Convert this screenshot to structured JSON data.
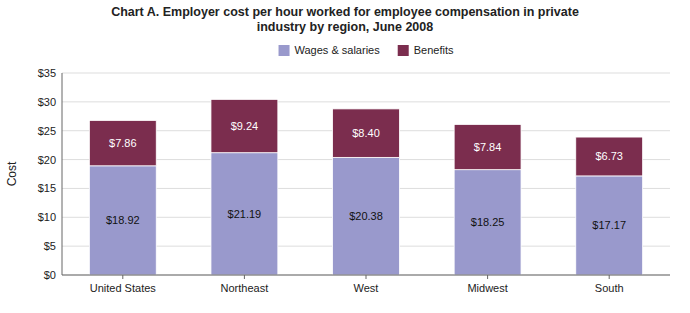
{
  "chart_data": {
    "type": "bar",
    "stacked": true,
    "title": "Chart A. Employer cost per hour worked for employee compensation in private\nindustry by region, June 2008",
    "ylabel": "Cost",
    "categories": [
      "United States",
      "Northeast",
      "West",
      "Midwest",
      "South"
    ],
    "series": [
      {
        "name": "Wages & salaries",
        "color": "#9999CC",
        "values": [
          18.92,
          21.19,
          20.38,
          18.25,
          17.17
        ],
        "value_labels": [
          "$18.92",
          "$21.19",
          "$20.38",
          "$18.25",
          "$17.17"
        ]
      },
      {
        "name": "Benefits",
        "color": "#7B2D4E",
        "values": [
          7.86,
          9.24,
          8.4,
          7.84,
          6.73
        ],
        "value_labels": [
          "$7.86",
          "$9.24",
          "$8.40",
          "$7.84",
          "$6.73"
        ]
      }
    ],
    "ylim": [
      0,
      35
    ],
    "yticks": [
      {
        "value": 0,
        "label": "$0"
      },
      {
        "value": 5,
        "label": "$5"
      },
      {
        "value": 10,
        "label": "$10"
      },
      {
        "value": 15,
        "label": "$15"
      },
      {
        "value": 20,
        "label": "$20"
      },
      {
        "value": 25,
        "label": "$25"
      },
      {
        "value": 30,
        "label": "$30"
      },
      {
        "value": 35,
        "label": "$35"
      }
    ],
    "grid": true,
    "legend": "top",
    "data_labels": true
  }
}
